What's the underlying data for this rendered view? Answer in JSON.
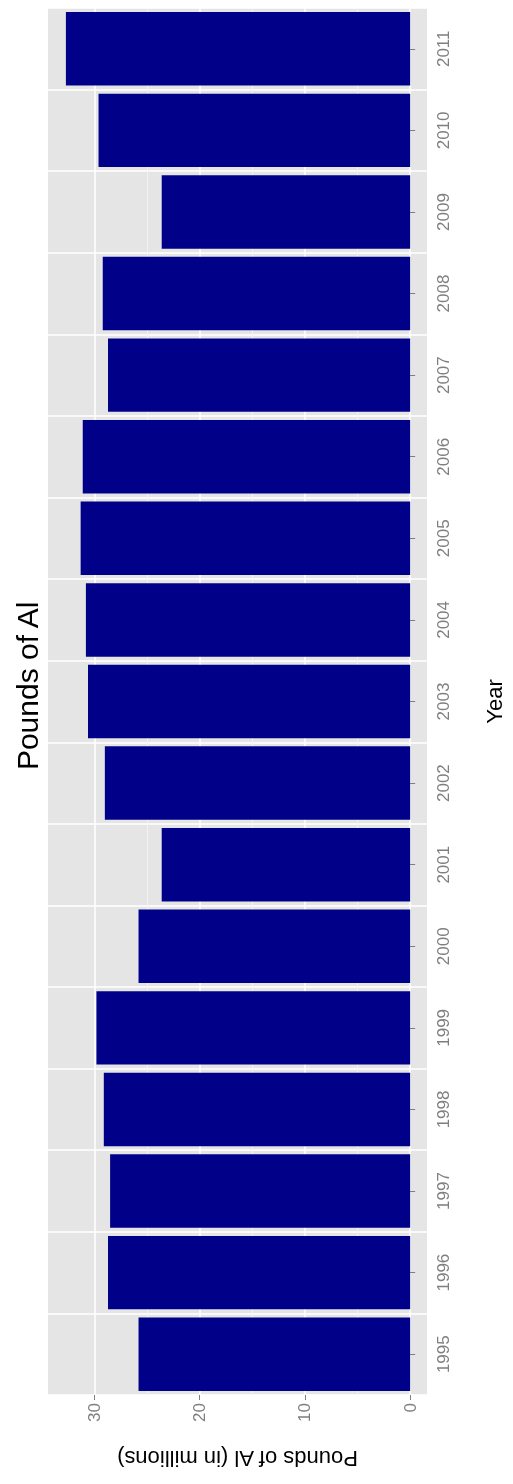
{
  "chart_data": {
    "type": "bar",
    "orientation": "horizontal",
    "title": "Pounds of Al",
    "ylabel": "Year",
    "xlabel": "Pounds of Al (in millions)",
    "categories": [
      "2011",
      "2010",
      "2009",
      "2008",
      "2007",
      "2006",
      "2005",
      "2004",
      "2003",
      "2002",
      "2001",
      "2000",
      "1999",
      "1998",
      "1997",
      "1996",
      "1995"
    ],
    "values": [
      32.7,
      29.6,
      23.6,
      29.2,
      28.7,
      31.1,
      31.3,
      30.8,
      30.6,
      29.0,
      23.6,
      25.8,
      29.8,
      29.1,
      28.5,
      28.7,
      25.8
    ],
    "color": "#000088",
    "xlim": [
      34.4,
      -1.6
    ],
    "xticks": [
      30,
      20,
      10,
      0
    ],
    "grid": true
  }
}
